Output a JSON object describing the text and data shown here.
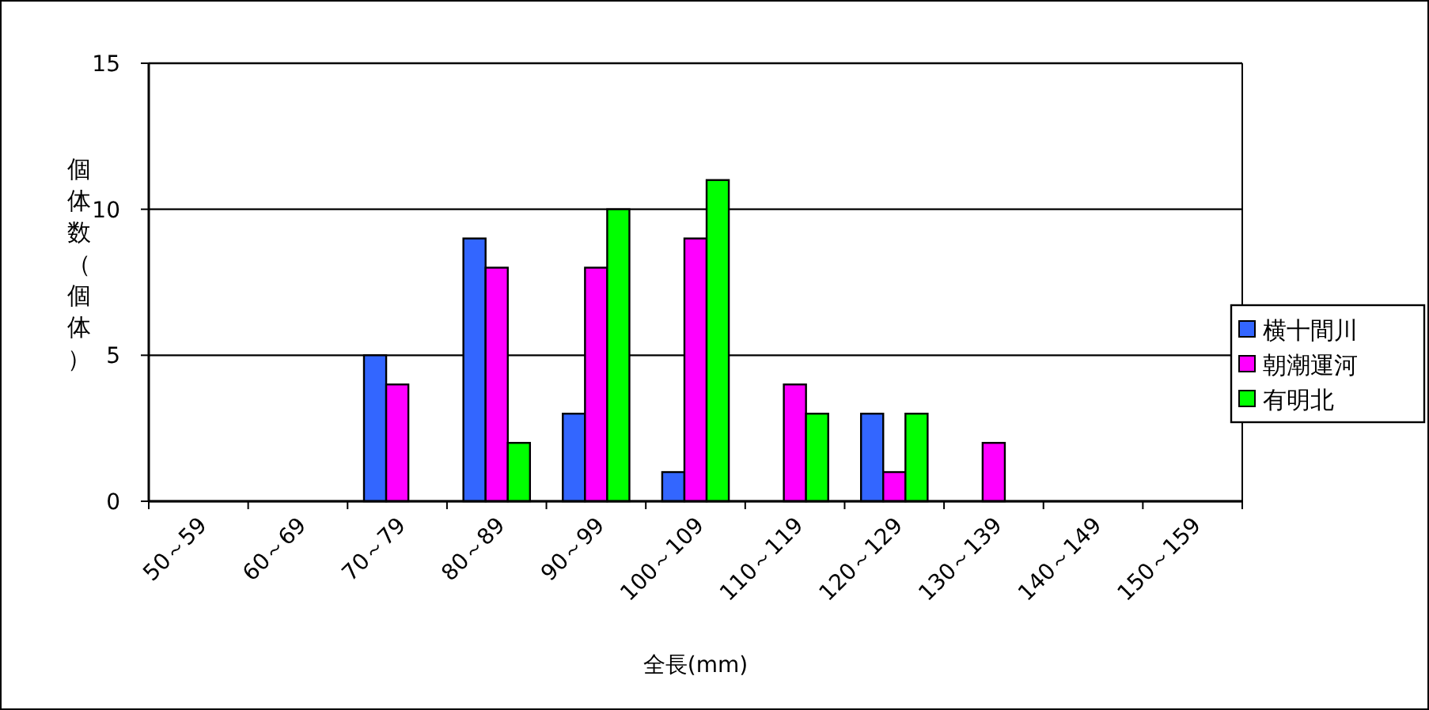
{
  "chart_data": {
    "type": "bar",
    "xlabel": "全長(mm)",
    "ylabel": "個体数（個体）",
    "categories": [
      "50～59",
      "60～69",
      "70～79",
      "80～89",
      "90～99",
      "100～109",
      "110～119",
      "120～129",
      "130～139",
      "140～149",
      "150～159"
    ],
    "series": [
      {
        "name": "横十間川",
        "color": "#3366ff",
        "values": [
          0,
          0,
          5,
          9,
          3,
          1,
          0,
          3,
          0,
          0,
          0
        ]
      },
      {
        "name": "朝潮運河",
        "color": "#ff00ff",
        "values": [
          0,
          0,
          4,
          8,
          8,
          9,
          4,
          1,
          2,
          0,
          0
        ]
      },
      {
        "name": "有明北",
        "color": "#00ff00",
        "values": [
          0,
          0,
          0,
          2,
          10,
          11,
          3,
          3,
          0,
          0,
          0
        ]
      }
    ],
    "ylim": [
      0,
      15
    ],
    "yticks": [
      0,
      5,
      10,
      15
    ],
    "grid": "y",
    "legend": "right"
  }
}
